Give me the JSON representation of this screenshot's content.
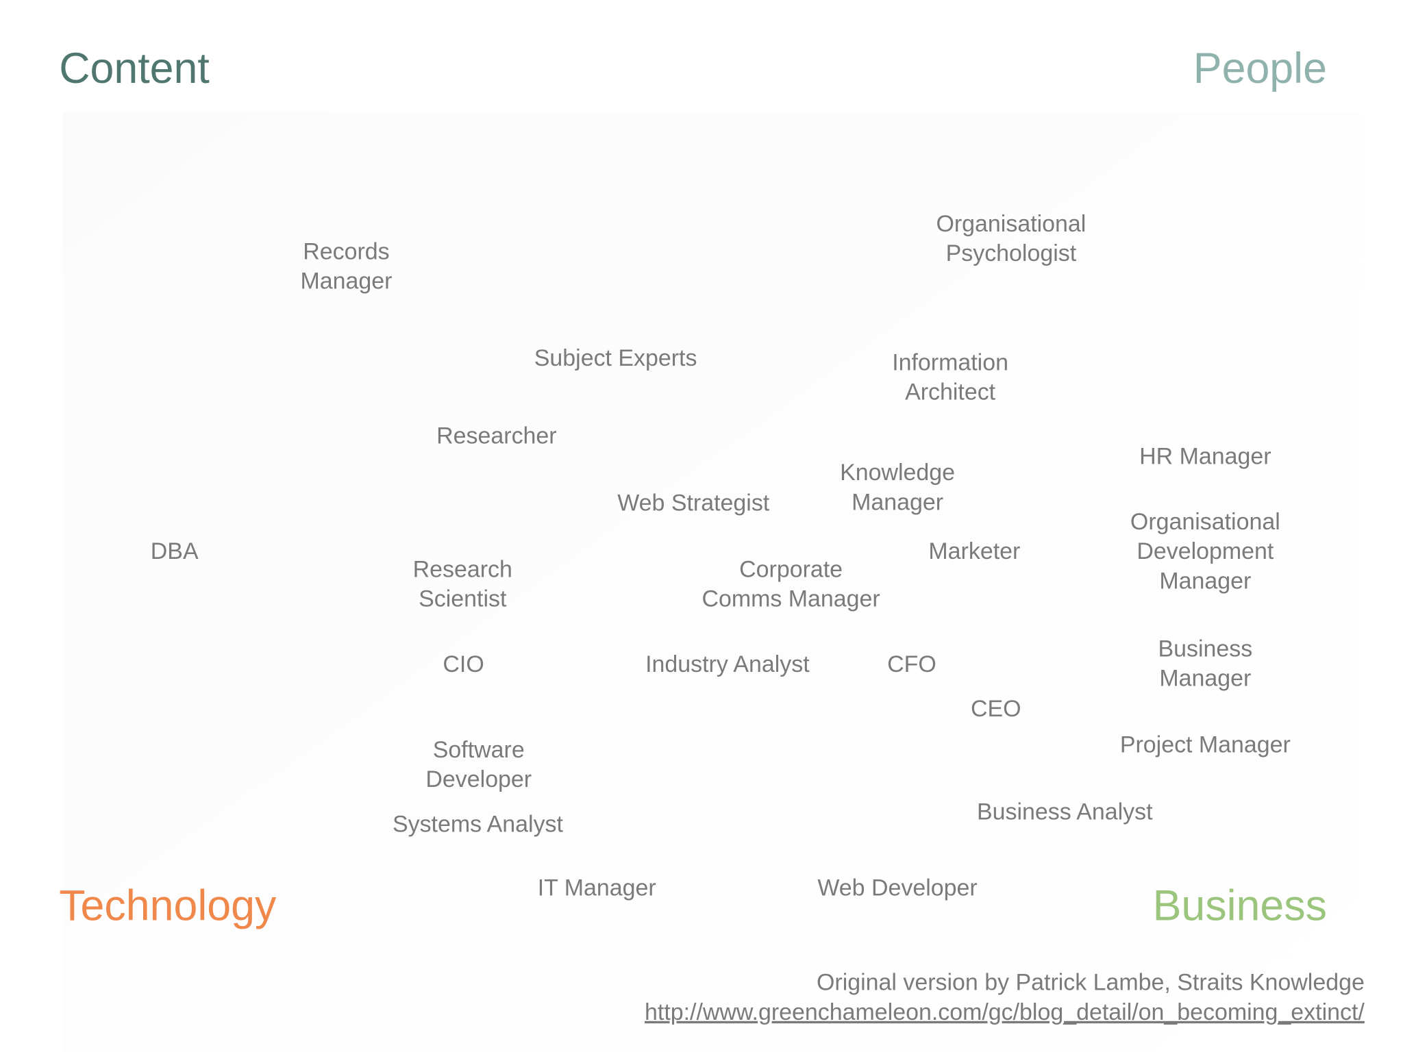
{
  "corners": {
    "top_left": "Content",
    "top_right": "People",
    "bottom_left": "Technology",
    "bottom_right": "Business"
  },
  "nodes": [
    {
      "lines": [
        "Records",
        "Manager"
      ]
    },
    {
      "lines": [
        "Organisational",
        "Psychologist"
      ]
    },
    {
      "lines": [
        "Subject Experts"
      ]
    },
    {
      "lines": [
        "Information",
        "Architect"
      ]
    },
    {
      "lines": [
        "Researcher"
      ]
    },
    {
      "lines": [
        "HR Manager"
      ]
    },
    {
      "lines": [
        "Knowledge",
        "Manager"
      ]
    },
    {
      "lines": [
        "Web Strategist"
      ]
    },
    {
      "lines": [
        "Organisational",
        "Development",
        "Manager"
      ]
    },
    {
      "lines": [
        "DBA"
      ]
    },
    {
      "lines": [
        "Marketer"
      ]
    },
    {
      "lines": [
        "Research",
        "Scientist"
      ]
    },
    {
      "lines": [
        "Corporate",
        "Comms Manager"
      ]
    },
    {
      "lines": [
        "Business",
        "Manager"
      ]
    },
    {
      "lines": [
        "CIO"
      ]
    },
    {
      "lines": [
        "Industry Analyst"
      ]
    },
    {
      "lines": [
        "CFO"
      ]
    },
    {
      "lines": [
        "CEO"
      ]
    },
    {
      "lines": [
        "Software",
        "Developer"
      ]
    },
    {
      "lines": [
        "Project Manager"
      ]
    },
    {
      "lines": [
        "Business Analyst"
      ]
    },
    {
      "lines": [
        "Systems Analyst"
      ]
    },
    {
      "lines": [
        "IT Manager"
      ]
    },
    {
      "lines": [
        "Web Developer"
      ]
    }
  ],
  "footer": {
    "credit": "Original version by Patrick Lambe, Straits Knowledge",
    "link": "http://www.greenchameleon.com/gc/blog_detail/on_becoming_extinct/"
  }
}
